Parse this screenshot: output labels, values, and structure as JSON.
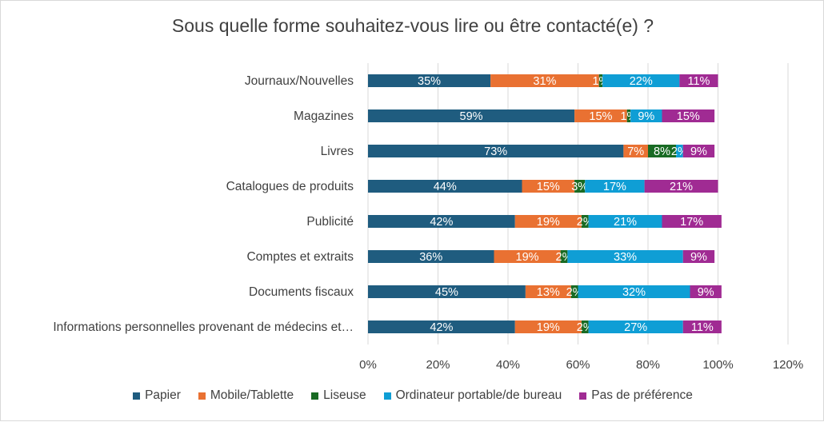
{
  "chart_data": {
    "type": "bar",
    "orientation": "horizontal",
    "stacked": true,
    "title": "Sous quelle forme souhaitez-vous lire ou être contacté(e) ?",
    "xlabel": "",
    "ylabel": "",
    "xlim": [
      0,
      120
    ],
    "x_ticks": [
      "0%",
      "20%",
      "40%",
      "60%",
      "80%",
      "100%",
      "120%"
    ],
    "grid": true,
    "legend_position": "bottom",
    "categories": [
      "Journaux/Nouvelles",
      "Magazines",
      "Livres",
      "Catalogues de produits",
      "Publicité",
      "Comptes et extraits",
      "Documents fiscaux",
      "Informations personnelles provenant de médecins et…"
    ],
    "series": [
      {
        "name": "Papier",
        "color": "#1f5c7f",
        "values": [
          35,
          59,
          73,
          44,
          42,
          36,
          45,
          42
        ]
      },
      {
        "name": "Mobile/Tablette",
        "color": "#e97132",
        "values": [
          31,
          15,
          7,
          15,
          19,
          19,
          13,
          19
        ]
      },
      {
        "name": "Liseuse",
        "color": "#196b24",
        "values": [
          1,
          1,
          8,
          3,
          2,
          2,
          2,
          2
        ]
      },
      {
        "name": "Ordinateur portable/de bureau",
        "color": "#0f9ed5",
        "values": [
          22,
          9,
          2,
          17,
          21,
          33,
          32,
          27
        ]
      },
      {
        "name": "Pas de préférence",
        "color": "#a02b93",
        "values": [
          11,
          15,
          9,
          21,
          17,
          9,
          9,
          11
        ]
      }
    ]
  }
}
